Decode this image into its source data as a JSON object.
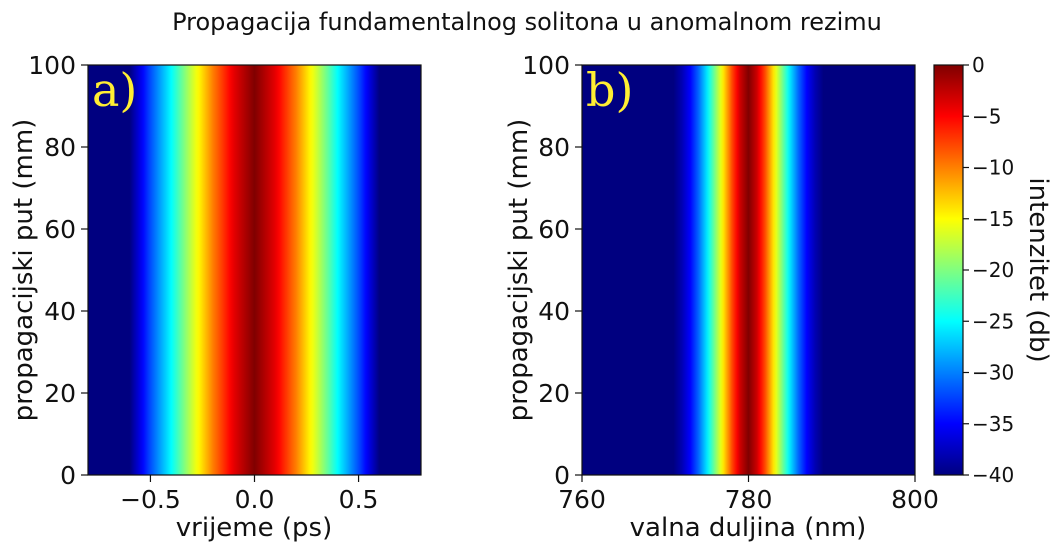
{
  "title": "Propagacija fundamentalnog solitona u anomalnom rezimu",
  "colors": {
    "colormap": "jet",
    "panel_letter": "#ffee33"
  },
  "chart_data": [
    {
      "type": "heatmap",
      "panel": "a)",
      "xlabel": "vrijeme (ps)",
      "ylabel": "propagacijski put (mm)",
      "xlim": [
        -0.8,
        0.8
      ],
      "ylim": [
        0,
        100
      ],
      "xticks": [
        -0.5,
        0.0,
        0.5
      ],
      "xtick_labels": [
        "−0.5",
        "0.0",
        "0.5"
      ],
      "yticks": [
        0,
        20,
        40,
        60,
        80,
        100
      ],
      "ytick_labels": [
        "0",
        "20",
        "40",
        "60",
        "80",
        "100"
      ],
      "center": 0.0,
      "profile": {
        "x": [
          0.0,
          0.1,
          0.2,
          0.3,
          0.4,
          0.5,
          0.6
        ],
        "db": [
          0,
          -4,
          -10,
          -17,
          -25,
          -32,
          -40
        ]
      },
      "z_invariant": true
    },
    {
      "type": "heatmap",
      "panel": "b)",
      "xlabel": "valna duljina (nm)",
      "ylabel": "propagacijski put (mm)",
      "xlim": [
        760,
        800
      ],
      "ylim": [
        0,
        100
      ],
      "xticks": [
        760,
        780,
        800
      ],
      "xtick_labels": [
        "760",
        "780",
        "800"
      ],
      "yticks": [
        0,
        20,
        40,
        60,
        80,
        100
      ],
      "ytick_labels": [
        "0",
        "20",
        "40",
        "60",
        "80",
        "100"
      ],
      "center": 780,
      "profile": {
        "x": [
          0,
          1,
          2,
          3,
          4,
          5,
          6,
          7,
          8,
          9
        ],
        "db": [
          0,
          -3,
          -8,
          -14,
          -20,
          -26,
          -31,
          -35,
          -38,
          -40
        ]
      },
      "z_invariant": true
    }
  ],
  "colorbar": {
    "label": "intenzitet (db)",
    "min": -40,
    "max": 0,
    "ticks": [
      0,
      -5,
      -10,
      -15,
      -20,
      -25,
      -30,
      -35,
      -40
    ],
    "tick_labels": [
      "0",
      "−5",
      "−10",
      "−15",
      "−20",
      "−25",
      "−30",
      "−35",
      "−40"
    ]
  }
}
